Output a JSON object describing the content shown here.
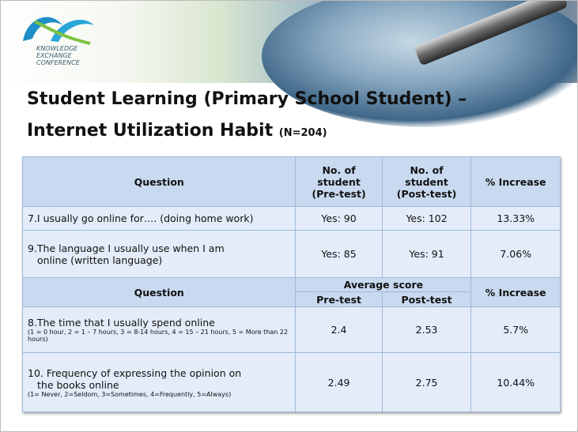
{
  "header": {
    "logo_lines": [
      "KNOWLEDGE",
      "EXCHANGE",
      "CONFERENCE"
    ]
  },
  "title": {
    "line1": "Student Learning (Primary School Student) –",
    "line2": "Internet Utilization Habit",
    "sample": "(N=204)"
  },
  "table1": {
    "header": [
      [
        "Question"
      ],
      [
        "No. of",
        "student",
        "(Pre-test)"
      ],
      [
        "No. of",
        "student",
        "(Post-test)"
      ],
      [
        "% Increase"
      ]
    ],
    "rows": [
      [
        [
          "7.I usually go online for…. (doing home work)"
        ],
        "Yes: 90",
        "Yes: 102",
        "13.33%"
      ],
      [
        [
          "9.The language I usually use when I am",
          "online (written language)"
        ],
        "Yes: 85",
        "Yes: 91",
        "7.06%"
      ]
    ]
  },
  "table2": {
    "header": {
      "question": "Question",
      "group": "Average score",
      "pre": "Pre-test",
      "post": "Post-test",
      "increase": "% Increase"
    },
    "rows": [
      {
        "question": [
          "8.The time that I usually spend online"
        ],
        "note": "(1 = 0 hour, 2 = 1 – 7 hours, 3 = 8-14 hours, 4 = 15 – 21  hours, 5 = More than 22 hours)",
        "pre": "2.4",
        "post": "2.53",
        "increase": "5.7%"
      },
      {
        "question": [
          "10. Frequency of expressing the opinion on",
          "the books online"
        ],
        "note": "(1= Never, 2=Seldom, 3=Sometimes, 4=Frequently,    5=Always)",
        "pre": "2.49",
        "post": "2.75",
        "increase": "10.44%"
      }
    ]
  }
}
